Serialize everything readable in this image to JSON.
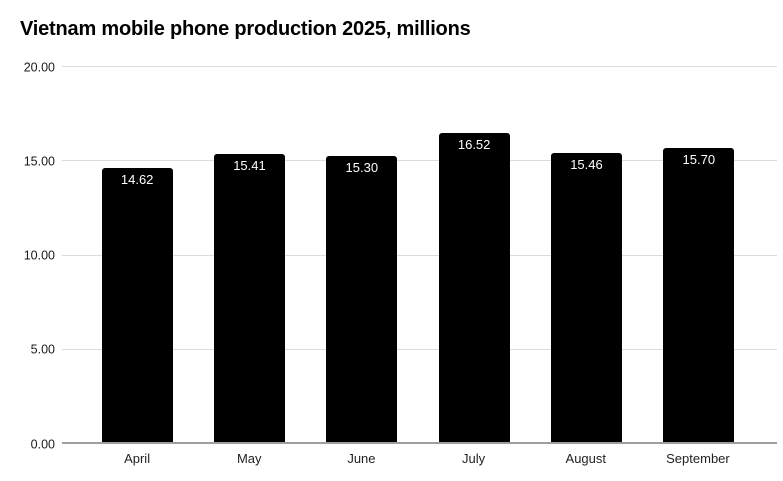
{
  "title": "Vietnam mobile phone production 2025, millions",
  "chart_data": {
    "type": "bar",
    "title": "Vietnam mobile phone production 2025, millions",
    "categories": [
      "April",
      "May",
      "June",
      "July",
      "August",
      "September"
    ],
    "values": [
      14.62,
      15.41,
      15.3,
      16.52,
      15.46,
      15.7
    ],
    "value_labels": [
      "14.62",
      "15.41",
      "15.30",
      "16.52",
      "15.46",
      "15.70"
    ],
    "xlabel": "",
    "ylabel": "",
    "ylim": [
      0,
      20
    ],
    "yticks": [
      0,
      5,
      10,
      15,
      20
    ],
    "ytick_labels": [
      "0.00",
      "5.00",
      "10.00",
      "15.00",
      "20.00"
    ],
    "grid": true,
    "legend": false,
    "colors": {
      "bar": "#000000",
      "bar_label": "#ffffff",
      "gridline": "#dcdcdc",
      "axis_line": "#9e9e9e",
      "tick_label": "#1a1a1a",
      "title": "#000000",
      "background": "#ffffff"
    }
  }
}
